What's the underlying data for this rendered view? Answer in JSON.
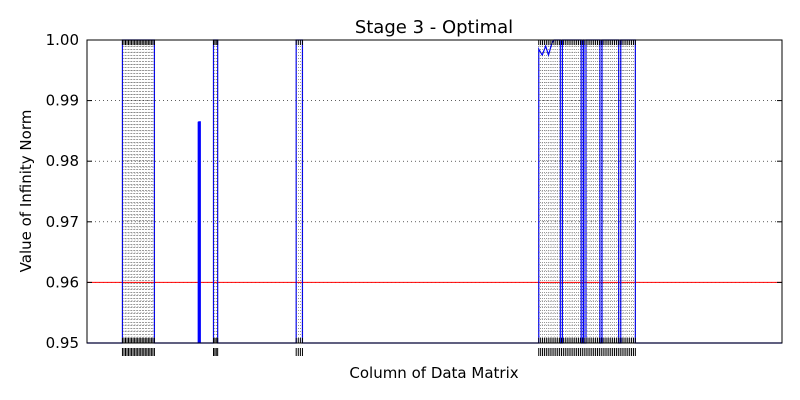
{
  "chart_data": {
    "type": "line",
    "title": "Stage 3 - Optimal",
    "xlabel": "Column of Data Matrix",
    "ylabel": "Value of Infinity Norm",
    "ylim": [
      0.95,
      1.0
    ],
    "yticks": [
      "0.95",
      "0.96",
      "0.97",
      "0.98",
      "0.99",
      "1.00"
    ],
    "grid": true,
    "threshold": {
      "value": 0.96,
      "color": "#ff0000"
    },
    "series_color": "#0000ff",
    "xlim": [
      0,
      100
    ],
    "x_labelled": false,
    "series": [
      {
        "points": [
          [
            0,
            0.95
          ],
          [
            0.2,
            0.95
          ],
          [
            5.1,
            0.95
          ],
          [
            5.1,
            1.0
          ],
          [
            9.7,
            1.0
          ],
          [
            9.7,
            0.95
          ],
          [
            16.1,
            0.95
          ],
          [
            16.1,
            0.9865
          ],
          [
            16.3,
            0.9865
          ],
          [
            16.3,
            0.95
          ],
          [
            18.2,
            0.95
          ],
          [
            18.2,
            1.0
          ],
          [
            18.8,
            1.0
          ],
          [
            18.8,
            0.95
          ],
          [
            30.1,
            0.95
          ],
          [
            30.1,
            1.0
          ],
          [
            31.0,
            1.0
          ],
          [
            31.0,
            0.95
          ],
          [
            65.0,
            0.95
          ],
          [
            65.0,
            0.9985
          ],
          [
            65.5,
            0.9975
          ],
          [
            66.0,
            0.999
          ],
          [
            66.4,
            0.9975
          ],
          [
            66.9,
            0.9995
          ],
          [
            67.2,
            1.0
          ],
          [
            68.1,
            1.0
          ],
          [
            68.1,
            0.95
          ],
          [
            68.4,
            0.95
          ],
          [
            68.4,
            1.0
          ],
          [
            71.1,
            1.0
          ],
          [
            71.1,
            0.95
          ],
          [
            71.4,
            0.95
          ],
          [
            71.4,
            1.0
          ],
          [
            71.5,
            1.0
          ],
          [
            71.5,
            0.95
          ],
          [
            71.8,
            0.95
          ],
          [
            71.8,
            1.0
          ],
          [
            73.8,
            1.0
          ],
          [
            73.8,
            0.95
          ],
          [
            74.1,
            0.95
          ],
          [
            74.1,
            1.0
          ],
          [
            76.5,
            1.0
          ],
          [
            76.5,
            0.95
          ],
          [
            76.8,
            0.95
          ],
          [
            76.8,
            1.0
          ],
          [
            78.9,
            1.0
          ],
          [
            78.9,
            0.95
          ],
          [
            100,
            0.95
          ]
        ]
      }
    ],
    "xtick_groups": [
      {
        "from": 5.1,
        "to": 9.7,
        "count": 22
      },
      {
        "from": 18.2,
        "to": 18.8,
        "count": 4
      },
      {
        "from": 30.1,
        "to": 31.0,
        "count": 4
      },
      {
        "from": 65.0,
        "to": 78.9,
        "count": 52
      }
    ],
    "minor_ygrid_ranges": [
      {
        "from": 5.1,
        "to": 9.7
      },
      {
        "from": 65.0,
        "to": 78.9
      }
    ]
  }
}
